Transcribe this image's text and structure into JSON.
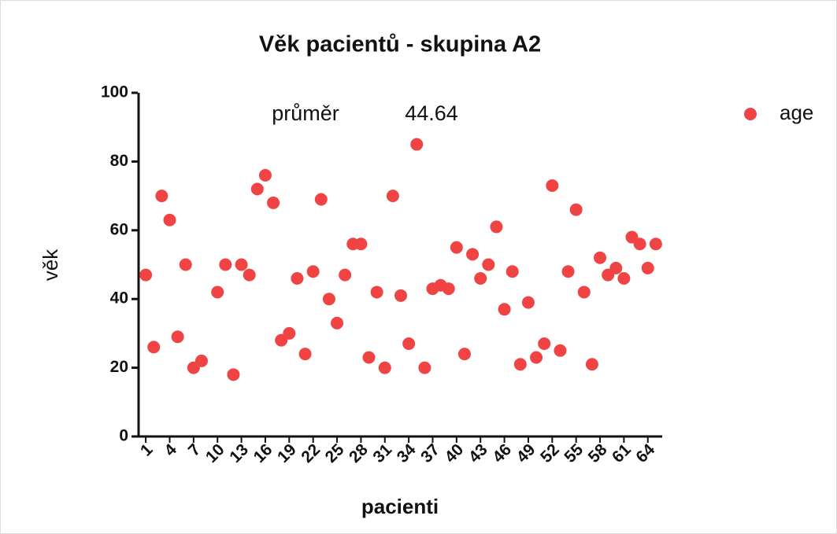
{
  "chart_data": {
    "type": "scatter",
    "title": "Věk pacientů - skupina A2",
    "xlabel": "pacienti",
    "ylabel": "věk",
    "annotation": {
      "label": "průměr",
      "value": 44.64
    },
    "legend": "top-right",
    "series": [
      {
        "name": "age",
        "color": "#f04444",
        "x": [
          1,
          2,
          3,
          4,
          5,
          6,
          7,
          8,
          10,
          11,
          12,
          13,
          14,
          15,
          16,
          17,
          18,
          19,
          20,
          21,
          22,
          23,
          24,
          25,
          26,
          27,
          28,
          29,
          30,
          31,
          32,
          33,
          34,
          35,
          36,
          37,
          38,
          39,
          40,
          41,
          42,
          43,
          44,
          45,
          46,
          47,
          48,
          49,
          50,
          51,
          52,
          53,
          54,
          55,
          56,
          57,
          58,
          59,
          60,
          61,
          62,
          63,
          64,
          65
        ],
        "values": [
          47,
          26,
          70,
          63,
          29,
          50,
          20,
          22,
          42,
          50,
          18,
          50,
          47,
          72,
          76,
          68,
          28,
          30,
          46,
          24,
          48,
          69,
          40,
          33,
          47,
          56,
          56,
          23,
          42,
          20,
          70,
          41,
          27,
          85,
          20,
          43,
          44,
          43,
          55,
          24,
          53,
          46,
          50,
          61,
          37,
          48,
          21,
          39,
          23,
          27,
          73,
          25,
          48,
          66,
          42,
          21,
          52,
          47,
          49,
          46,
          58,
          56,
          49,
          56
        ]
      }
    ],
    "xlim": [
      0,
      66
    ],
    "xticks": [
      1,
      4,
      7,
      10,
      13,
      16,
      19,
      22,
      25,
      28,
      31,
      34,
      37,
      40,
      43,
      46,
      49,
      52,
      55,
      58,
      61,
      64
    ],
    "ylim": [
      0,
      100
    ],
    "yticks": [
      0,
      20,
      40,
      60,
      80,
      100
    ]
  }
}
